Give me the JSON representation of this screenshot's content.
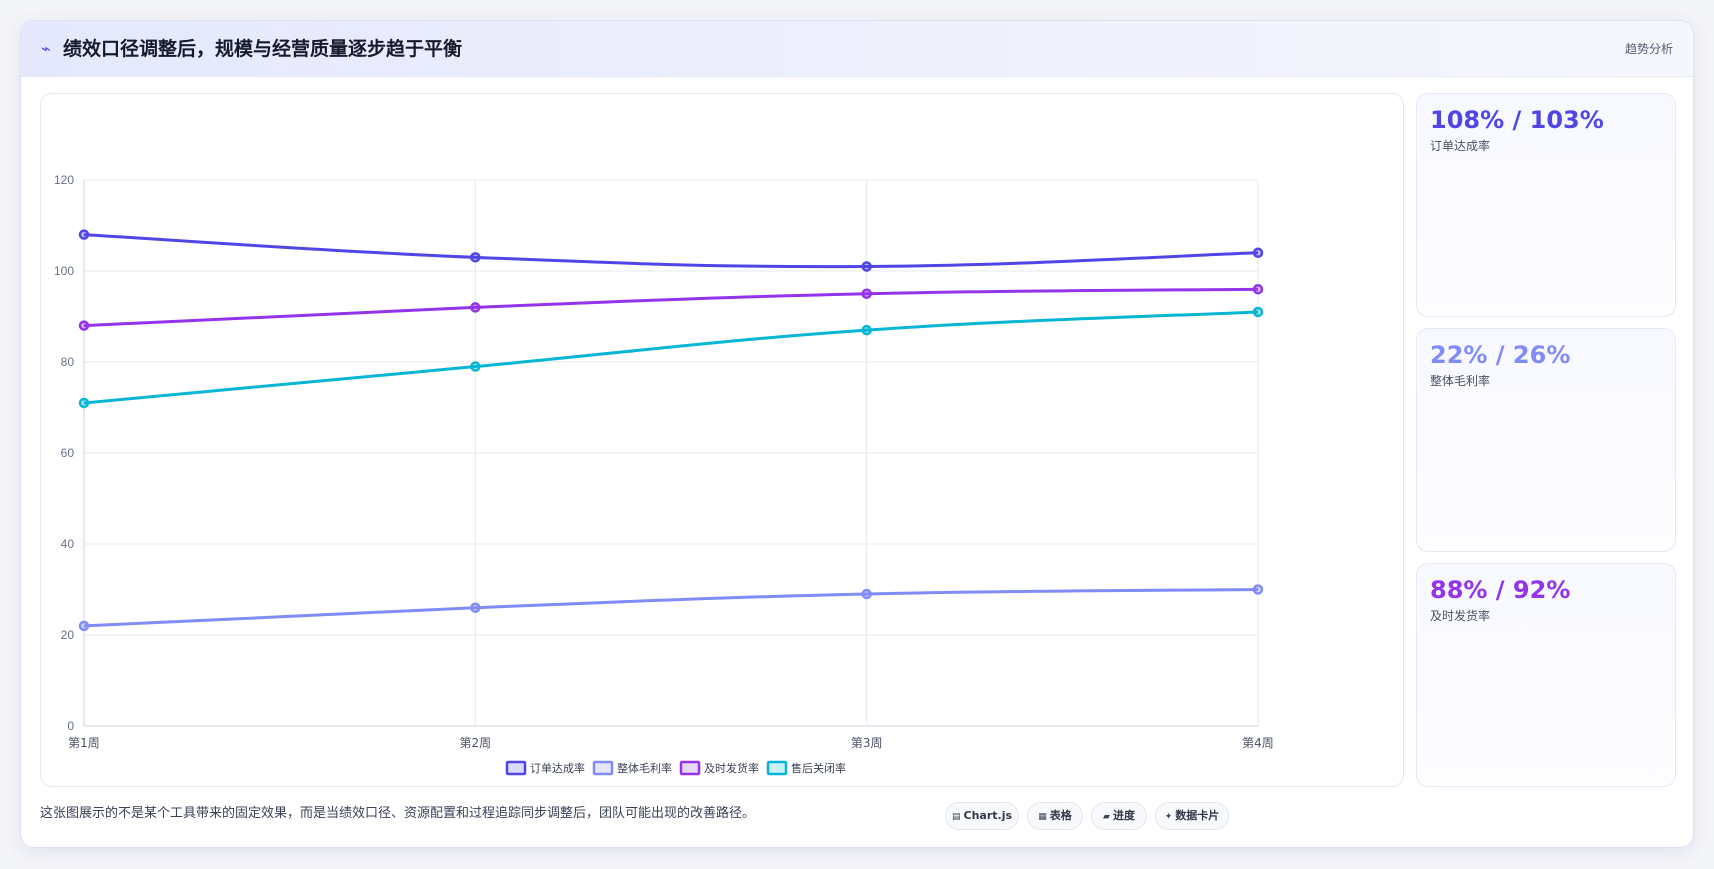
{
  "header": {
    "icon": "trend-line-icon",
    "title": "绩效口径调整后，规模与经营质量逐步趋于平衡",
    "link_label": "趋势分析"
  },
  "chart_data": {
    "type": "line",
    "categories": [
      "第1周",
      "第2周",
      "第3周",
      "第4周"
    ],
    "series": [
      {
        "name": "订单达成率",
        "values": [
          108,
          103,
          101,
          104
        ],
        "color": "#4f46e5"
      },
      {
        "name": "整体毛利率",
        "values": [
          22,
          26,
          29,
          30
        ],
        "color": "#818cf8"
      },
      {
        "name": "及时发货率",
        "values": [
          88,
          92,
          95,
          96
        ],
        "color": "#9333ea"
      },
      {
        "name": "售后关闭率",
        "values": [
          71,
          79,
          87,
          91
        ],
        "color": "#06b6d4"
      }
    ],
    "ylim": [
      0,
      120
    ],
    "yticks": [
      0,
      20,
      40,
      60,
      80,
      100,
      120
    ],
    "grid": true,
    "legend": "bottom-center",
    "title": "",
    "xlabel": "",
    "ylabel": ""
  },
  "metrics": [
    {
      "value": "108% / 103%",
      "label": "订单达成率",
      "color": "#4f46e5"
    },
    {
      "value": "22% / 26%",
      "label": "整体毛利率",
      "color": "#818cf8"
    },
    {
      "value": "88% / 92%",
      "label": "及时发货率",
      "color": "#9333ea"
    }
  ],
  "footer": {
    "text": "这张图展示的不是某个工具带来的固定效果，而是当绩效口径、资源配置和过程追踪同步调整后，团队可能出现的改善路径。",
    "chips": [
      {
        "icon": "chart-icon",
        "label": "Chart.js"
      },
      {
        "icon": "table-icon",
        "label": "表格"
      },
      {
        "icon": "progress-icon",
        "label": "进度"
      },
      {
        "icon": "sparkle-icon",
        "label": "数据卡片"
      }
    ]
  }
}
